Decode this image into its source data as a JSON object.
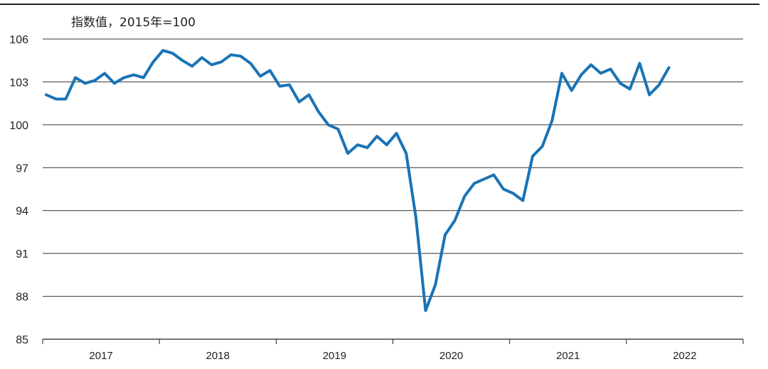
{
  "chart_data": {
    "type": "line",
    "unit_label": "指数值，2015年=100",
    "ylim": [
      85,
      106
    ],
    "yticks": [
      85,
      88,
      91,
      94,
      97,
      100,
      103,
      106
    ],
    "x_years": [
      "2017",
      "2018",
      "2019",
      "2020",
      "2021",
      "2022"
    ],
    "grid": true,
    "series": [
      {
        "color": "#1a73b5",
        "x": [
          "2017-01",
          "2017-02",
          "2017-03",
          "2017-04",
          "2017-05",
          "2017-06",
          "2017-07",
          "2017-08",
          "2017-09",
          "2017-10",
          "2017-11",
          "2017-12",
          "2018-01",
          "2018-02",
          "2018-03",
          "2018-04",
          "2018-05",
          "2018-06",
          "2018-07",
          "2018-08",
          "2018-09",
          "2018-10",
          "2018-11",
          "2018-12",
          "2019-01",
          "2019-02",
          "2019-03",
          "2019-04",
          "2019-05",
          "2019-06",
          "2019-07",
          "2019-08",
          "2019-09",
          "2019-10",
          "2019-11",
          "2019-12",
          "2020-01",
          "2020-02",
          "2020-03",
          "2020-04",
          "2020-05",
          "2020-06",
          "2020-07",
          "2020-08",
          "2020-09",
          "2020-10",
          "2020-11",
          "2020-12",
          "2021-01",
          "2021-02",
          "2021-03",
          "2021-04",
          "2021-05",
          "2021-06",
          "2021-07",
          "2021-08",
          "2021-09",
          "2021-10",
          "2021-11",
          "2021-12",
          "2022-01",
          "2022-02",
          "2022-03",
          "2022-04",
          "2022-05"
        ],
        "values": [
          102.1,
          101.8,
          101.8,
          103.3,
          102.9,
          103.1,
          103.6,
          102.9,
          103.3,
          103.5,
          103.3,
          104.4,
          105.2,
          105.0,
          104.5,
          104.1,
          104.7,
          104.2,
          104.4,
          104.9,
          104.8,
          104.3,
          103.4,
          103.8,
          102.7,
          102.8,
          101.6,
          102.1,
          100.9,
          100.0,
          99.7,
          98.0,
          98.6,
          98.4,
          99.2,
          98.6,
          99.4,
          98.0,
          93.5,
          87.0,
          88.8,
          92.3,
          93.3,
          95.0,
          95.9,
          96.2,
          96.5,
          95.5,
          95.2,
          94.7,
          97.8,
          98.5,
          100.3,
          103.6,
          102.4,
          103.5,
          104.2,
          103.6,
          103.9,
          102.9,
          102.5,
          104.3,
          102.1,
          102.8,
          104.0
        ]
      }
    ]
  }
}
